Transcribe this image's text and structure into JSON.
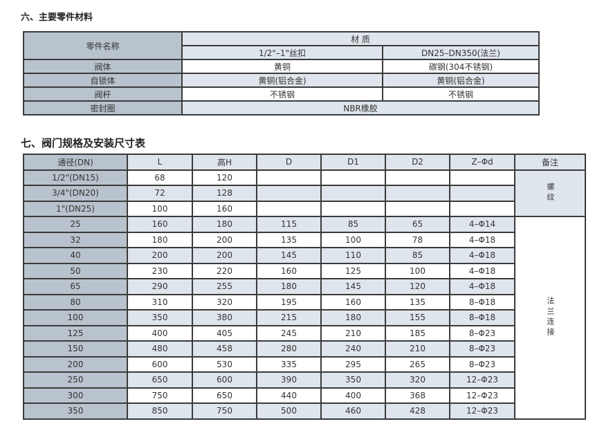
{
  "section6": {
    "title": "六、主要零件材料",
    "header": {
      "part_name": "零件名称",
      "material": "材 质",
      "col1": "1/2\"–1\"丝扣",
      "col2": "DN25–DN350(法兰)"
    },
    "rows": [
      {
        "part": "阀体",
        "c1": "黄铜",
        "c2": "碳钢(304不锈钢)"
      },
      {
        "part": "自锁体",
        "c1": "黄铜(铝合金)",
        "c2": "黄铜(铝合金)"
      },
      {
        "part": "阀杆",
        "c1": "不锈钢",
        "c2": "不锈钢"
      },
      {
        "part": "密封圈",
        "c1": "NBR橡胶"
      }
    ]
  },
  "section7": {
    "title": "七、阀门规格及安装尺寸表",
    "headers": [
      "通径(DN)",
      "L",
      "高H",
      "D",
      "D1",
      "D2",
      "Z–Φd",
      "备注"
    ],
    "note_threaded": "螺纹",
    "note_flange": "法兰连接",
    "rows": [
      [
        "1/2\"(DN15)",
        "68",
        "120",
        "",
        "",
        "",
        ""
      ],
      [
        "3/4\"(DN20)",
        "72",
        "128",
        "",
        "",
        "",
        ""
      ],
      [
        "1\"(DN25)",
        "100",
        "160",
        "",
        "",
        "",
        ""
      ],
      [
        "25",
        "160",
        "180",
        "115",
        "85",
        "65",
        "4–Φ14"
      ],
      [
        "32",
        "180",
        "200",
        "135",
        "100",
        "78",
        "4–Φ18"
      ],
      [
        "40",
        "200",
        "200",
        "145",
        "110",
        "85",
        "4–Φ18"
      ],
      [
        "50",
        "230",
        "220",
        "160",
        "125",
        "100",
        "4–Φ18"
      ],
      [
        "65",
        "290",
        "255",
        "180",
        "145",
        "120",
        "4–Φ18"
      ],
      [
        "80",
        "310",
        "320",
        "195",
        "160",
        "135",
        "8–Φ18"
      ],
      [
        "100",
        "350",
        "380",
        "215",
        "180",
        "155",
        "8–Φ18"
      ],
      [
        "125",
        "400",
        "405",
        "245",
        "210",
        "185",
        "8–Φ23"
      ],
      [
        "150",
        "480",
        "458",
        "280",
        "240",
        "210",
        "8–Φ23"
      ],
      [
        "200",
        "600",
        "530",
        "335",
        "295",
        "265",
        "8–Φ23"
      ],
      [
        "250",
        "650",
        "600",
        "390",
        "350",
        "320",
        "12–Φ23"
      ],
      [
        "300",
        "750",
        "650",
        "440",
        "400",
        "368",
        "12–Φ23"
      ],
      [
        "350",
        "850",
        "750",
        "500",
        "460",
        "428",
        "12–Φ23"
      ]
    ]
  }
}
